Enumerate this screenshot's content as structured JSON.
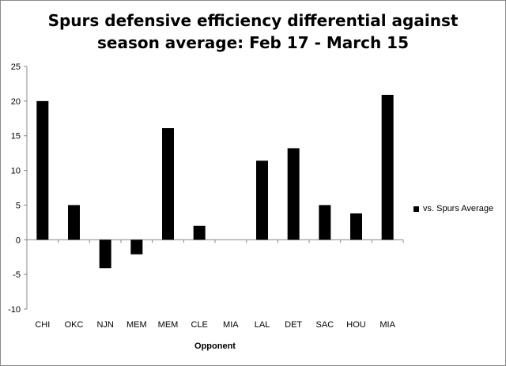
{
  "chart_data": {
    "type": "bar",
    "title_line1": "Spurs defensive efficiency differential against",
    "title_line2": "season average: Feb 17 - March 15",
    "xlabel": "Opponent",
    "ylabel": "",
    "ylim": [
      -10,
      25
    ],
    "yticks": [
      "25",
      "20",
      "15",
      "10",
      "5",
      "0",
      "-5",
      "-10"
    ],
    "grid": false,
    "legend_position": "right",
    "categories": [
      "CHI",
      "OKC",
      "NJN",
      "MEM",
      "MEM",
      "CLE",
      "MIA",
      "LAL",
      "DET",
      "SAC",
      "HOU",
      "MIA"
    ],
    "series": [
      {
        "name": "vs. Spurs Average",
        "color": "#000000",
        "values": [
          20.0,
          5.0,
          -4.1,
          -2.1,
          16.1,
          2.0,
          0.0,
          11.4,
          13.2,
          5.0,
          3.8,
          20.9
        ]
      }
    ]
  }
}
